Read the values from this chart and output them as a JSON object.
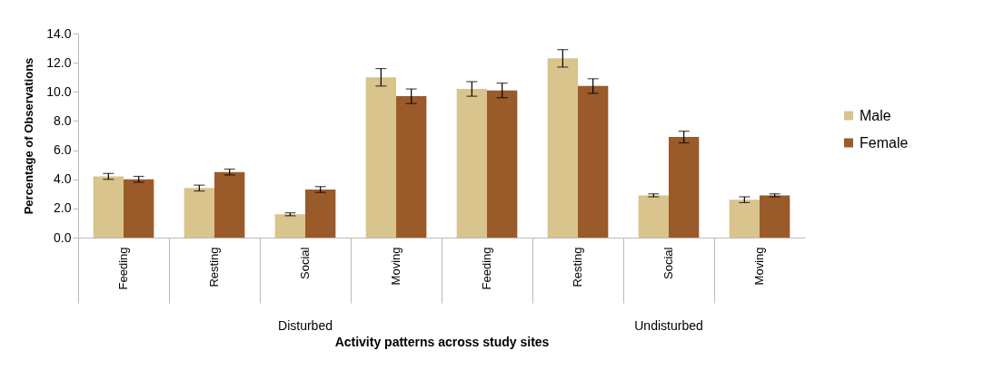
{
  "chart_data": {
    "type": "bar",
    "xlabel": "Activity patterns across study sites",
    "ylabel": "Percentage of Observations",
    "categories": [
      "Feeding",
      "Resting",
      "Social",
      "Moving",
      "Feeding",
      "Resting",
      "Social",
      "Moving"
    ],
    "annotations": [
      "Disturbed",
      "Undisturbed"
    ],
    "series": [
      {
        "name": "Male",
        "color": "#d8c48c",
        "values": [
          4.2,
          3.4,
          1.6,
          11.0,
          10.2,
          12.3,
          2.9,
          2.6
        ],
        "errors": [
          0.2,
          0.2,
          0.1,
          0.6,
          0.5,
          0.6,
          0.1,
          0.2
        ]
      },
      {
        "name": "Female",
        "color": "#9a5a2a",
        "values": [
          4.0,
          4.5,
          3.3,
          9.7,
          10.1,
          10.4,
          6.9,
          2.9
        ],
        "errors": [
          0.2,
          0.2,
          0.2,
          0.5,
          0.5,
          0.5,
          0.4,
          0.1
        ]
      }
    ],
    "ylim": [
      0,
      14
    ],
    "yticks": [
      {
        "value": 0,
        "label": "0.0"
      },
      {
        "value": 2,
        "label": "2.0"
      },
      {
        "value": 4,
        "label": "4.0"
      },
      {
        "value": 6,
        "label": "6.0"
      },
      {
        "value": 8,
        "label": "8.0"
      },
      {
        "value": 10,
        "label": "10.0"
      },
      {
        "value": 12,
        "label": "12.0"
      },
      {
        "value": 14,
        "label": "14.0"
      }
    ],
    "grid": false,
    "legend": "right"
  }
}
